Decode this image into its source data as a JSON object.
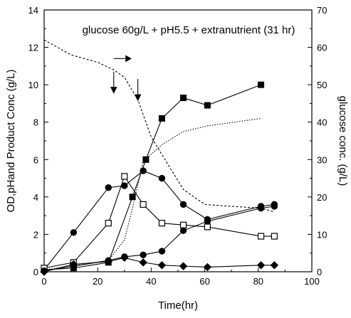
{
  "chart_data": {
    "type": "line",
    "title": "glucose 60g/L + pH5.5 + extranutrient (31 hr)",
    "xlabel": "Time(hr)",
    "ylabel": "OD,pHand Product Conc (g/L)",
    "y2label": "glucose conc. (g/L)",
    "xlim": [
      0,
      100
    ],
    "ylim": [
      0,
      14
    ],
    "y2lim": [
      0,
      70
    ],
    "xticks": [
      "0",
      "20",
      "40",
      "60",
      "80",
      "100"
    ],
    "yticks": [
      "0",
      "2",
      "4",
      "6",
      "8",
      "10",
      "12",
      "14"
    ],
    "y2ticks": [
      "0",
      "10",
      "20",
      "30",
      "40",
      "50",
      "60",
      "70"
    ],
    "grid": false,
    "series": [
      {
        "axis": "left",
        "marker": "filled-square",
        "line": "solid",
        "points": [
          [
            0,
            0.1
          ],
          [
            11,
            0.2
          ],
          [
            24,
            0.5
          ],
          [
            33,
            4.0
          ],
          [
            38,
            6.0
          ],
          [
            44,
            8.2
          ],
          [
            52,
            9.3
          ],
          [
            61,
            8.9
          ],
          [
            81,
            10.0
          ]
        ]
      },
      {
        "axis": "left",
        "marker": "filled-circle",
        "line": "solid",
        "points": [
          [
            0,
            0.1
          ],
          [
            11,
            2.1
          ],
          [
            24,
            4.5
          ],
          [
            30,
            4.6
          ],
          [
            37,
            5.4
          ],
          [
            44,
            5.0
          ],
          [
            52,
            3.6
          ],
          [
            61,
            2.8
          ],
          [
            81,
            3.5
          ],
          [
            86,
            3.6
          ]
        ]
      },
      {
        "axis": "left",
        "marker": "open-square",
        "line": "solid",
        "points": [
          [
            0,
            0.2
          ],
          [
            11,
            0.5
          ],
          [
            24,
            2.6
          ],
          [
            30,
            5.1
          ],
          [
            37,
            3.6
          ],
          [
            44,
            2.6
          ],
          [
            52,
            2.5
          ],
          [
            61,
            2.4
          ],
          [
            81,
            1.9
          ],
          [
            86,
            1.9
          ]
        ]
      },
      {
        "axis": "left",
        "marker": "filled-circle",
        "line": "solid",
        "points": [
          [
            0,
            0.05
          ],
          [
            11,
            0.3
          ],
          [
            24,
            0.6
          ],
          [
            30,
            0.8
          ],
          [
            37,
            0.9
          ],
          [
            44,
            1.1
          ],
          [
            52,
            2.2
          ],
          [
            61,
            2.7
          ],
          [
            81,
            3.4
          ],
          [
            86,
            3.5
          ]
        ]
      },
      {
        "axis": "left",
        "marker": "filled-diamond",
        "line": "solid",
        "points": [
          [
            0,
            0.0
          ],
          [
            11,
            0.4
          ],
          [
            24,
            0.55
          ],
          [
            30,
            0.75
          ],
          [
            37,
            0.5
          ],
          [
            44,
            0.35
          ],
          [
            52,
            0.3
          ],
          [
            61,
            0.25
          ],
          [
            81,
            0.35
          ],
          [
            86,
            0.35
          ]
        ]
      },
      {
        "axis": "left",
        "marker": "none",
        "line": "dotted",
        "points": [
          [
            0,
            0.1
          ],
          [
            24,
            0.6
          ],
          [
            30,
            1.7
          ],
          [
            33,
            3.4
          ],
          [
            37,
            5.9
          ],
          [
            44,
            6.8
          ],
          [
            52,
            7.5
          ],
          [
            61,
            7.8
          ],
          [
            81,
            8.2
          ]
        ]
      },
      {
        "axis": "right",
        "marker": "none",
        "line": "dashed",
        "points": [
          [
            0,
            62
          ],
          [
            10,
            58
          ],
          [
            20,
            56
          ],
          [
            26,
            54
          ],
          [
            30,
            52
          ],
          [
            35,
            46
          ],
          [
            40,
            36
          ],
          [
            46,
            29
          ],
          [
            52,
            22
          ],
          [
            60,
            18
          ],
          [
            70,
            17.5
          ],
          [
            81,
            17
          ],
          [
            86,
            16
          ]
        ]
      }
    ],
    "annotations": [
      {
        "type": "arrow-right",
        "x": 26,
        "y2": 57
      },
      {
        "type": "arrow-down",
        "x": 26,
        "y2": 52
      },
      {
        "type": "arrow-down",
        "x": 35,
        "y2": 50
      }
    ]
  }
}
